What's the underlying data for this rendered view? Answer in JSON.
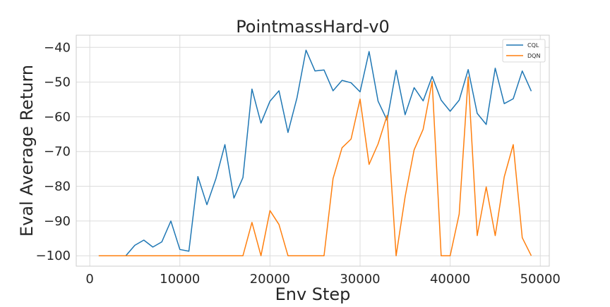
{
  "chart_data": {
    "type": "line",
    "title": "PointmassHard-v0",
    "xlabel": "Env Step",
    "ylabel": "Eval Average Return",
    "xlim": [
      -1500,
      51000
    ],
    "ylim": [
      -103,
      -36.5
    ],
    "xticks": [
      0,
      10000,
      20000,
      30000,
      40000,
      50000
    ],
    "yticks": [
      -100,
      -90,
      -80,
      -70,
      -60,
      -50,
      -40
    ],
    "xtick_labels": [
      "0",
      "10000",
      "20000",
      "30000",
      "40000",
      "50000"
    ],
    "ytick_labels": [
      "−100",
      "−90",
      "−80",
      "−70",
      "−60",
      "−50",
      "−40"
    ],
    "grid": true,
    "legend_position": "top-right",
    "x": [
      1000,
      2000,
      3000,
      4000,
      5000,
      6000,
      7000,
      8000,
      9000,
      10000,
      11000,
      12000,
      13000,
      14000,
      15000,
      16000,
      17000,
      18000,
      19000,
      20000,
      21000,
      22000,
      23000,
      24000,
      25000,
      26000,
      27000,
      28000,
      29000,
      30000,
      31000,
      32000,
      33000,
      34000,
      35000,
      36000,
      37000,
      38000,
      39000,
      40000,
      41000,
      42000,
      43000,
      44000,
      45000,
      46000,
      47000,
      48000,
      49000
    ],
    "series": [
      {
        "name": "CQL",
        "color": "#1f77b4",
        "values": [
          -100,
          -100,
          -100,
          -100,
          -97,
          -95.5,
          -97.5,
          -96,
          -90,
          -98.2,
          -98.7,
          -77.2,
          -85.3,
          -77.8,
          -68,
          -83.4,
          -77.5,
          -52,
          -61.8,
          -55.5,
          -52.5,
          -64.5,
          -54.5,
          -40.8,
          -46.8,
          -46.5,
          -52.5,
          -49.5,
          -50.2,
          -52.8,
          -41.2,
          -55.5,
          -61,
          -46.6,
          -59.4,
          -51.6,
          -55.4,
          -48.4,
          -55.2,
          -58.4,
          -55.2,
          -46.4,
          -59,
          -62.2,
          -46,
          -56.2,
          -54.8,
          -46.8,
          -52.6
        ]
      },
      {
        "name": "DQN",
        "color": "#ff7f0e",
        "values": [
          -100,
          -100,
          -100,
          -100,
          -100,
          -100,
          -100,
          -100,
          -100,
          -100,
          -100,
          -100,
          -100,
          -100,
          -100,
          -100,
          -100,
          -90.4,
          -100,
          -87,
          -91,
          -100,
          -100,
          -100,
          -100,
          -100,
          -77.8,
          -68.9,
          -66.4,
          -54.9,
          -73.7,
          -67.8,
          -59.6,
          -100,
          -83,
          -69.5,
          -63.6,
          -49.8,
          -100,
          -100,
          -88,
          -48.5,
          -94.2,
          -80.2,
          -94.2,
          -77.3,
          -68,
          -94.8,
          -100
        ]
      }
    ]
  }
}
